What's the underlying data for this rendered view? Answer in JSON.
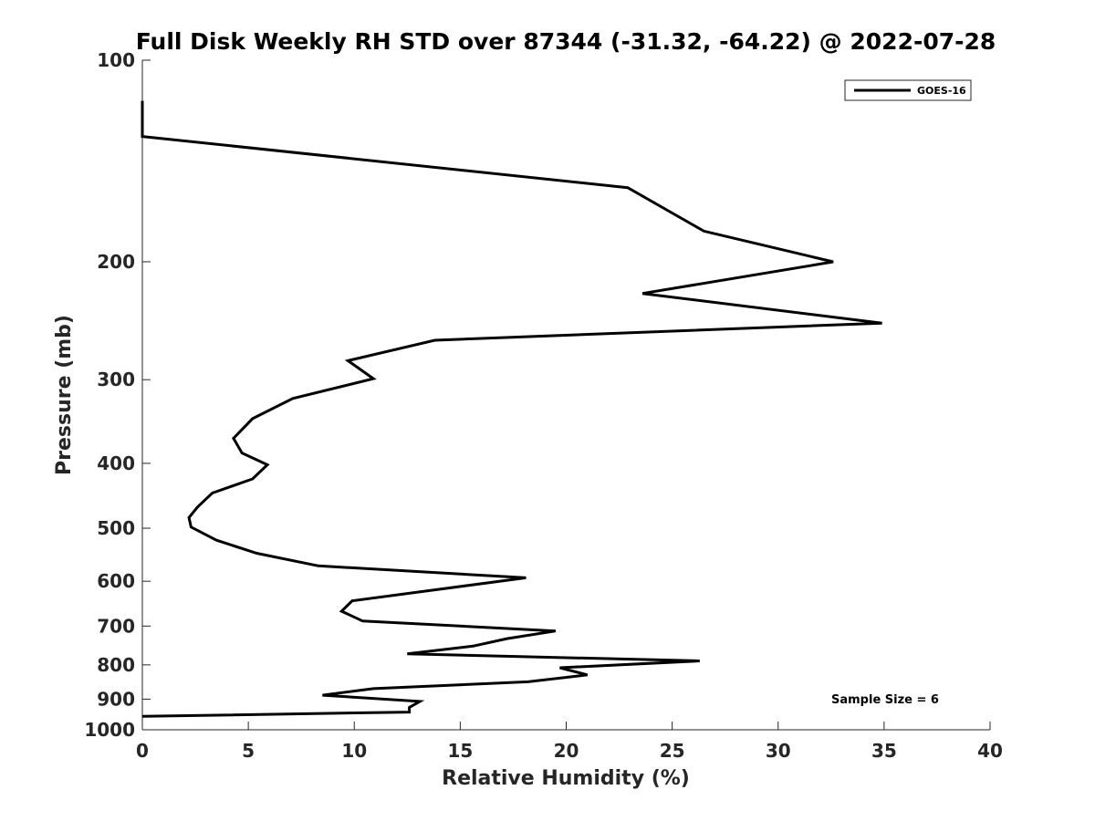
{
  "chart_data": {
    "type": "line",
    "title": "Full Disk Weekly RH STD over 87344 (-31.32, -64.22) @ 2022-07-28",
    "xlabel": "Relative Humidity (%)",
    "ylabel": "Pressure (mb)",
    "xlim": [
      0,
      40
    ],
    "ylim": [
      100,
      1000
    ],
    "yscale": "log",
    "y_reversed": true,
    "xticks": [
      0,
      5,
      10,
      15,
      20,
      25,
      30,
      35,
      40
    ],
    "yticks": [
      100,
      200,
      300,
      400,
      500,
      600,
      700,
      800,
      900,
      1000
    ],
    "grid": false,
    "legend_position": "top-right",
    "series": [
      {
        "name": "GOES-16",
        "color": "#000000",
        "points": [
          [
            0.0,
            115
          ],
          [
            0.0,
            130
          ],
          [
            22.9,
            155
          ],
          [
            26.5,
            180
          ],
          [
            32.6,
            200
          ],
          [
            23.6,
            223
          ],
          [
            34.9,
            247
          ],
          [
            13.8,
            262
          ],
          [
            9.7,
            281
          ],
          [
            10.9,
            299
          ],
          [
            7.1,
            320
          ],
          [
            5.2,
            343
          ],
          [
            4.3,
            367
          ],
          [
            4.7,
            386
          ],
          [
            5.9,
            402
          ],
          [
            5.2,
            422
          ],
          [
            3.3,
            443
          ],
          [
            2.6,
            465
          ],
          [
            2.2,
            482
          ],
          [
            2.3,
            498
          ],
          [
            3.5,
            521
          ],
          [
            5.4,
            545
          ],
          [
            8.3,
            569
          ],
          [
            18.1,
            593
          ],
          [
            13.8,
            618
          ],
          [
            9.9,
            642
          ],
          [
            9.4,
            665
          ],
          [
            10.4,
            688
          ],
          [
            19.5,
            712
          ],
          [
            17.2,
            731
          ],
          [
            15.6,
            750
          ],
          [
            12.5,
            770
          ],
          [
            26.3,
            789
          ],
          [
            19.7,
            808
          ],
          [
            21.0,
            828
          ],
          [
            18.2,
            848
          ],
          [
            10.9,
            868
          ],
          [
            8.5,
            888
          ],
          [
            13.1,
            907
          ],
          [
            12.6,
            926
          ],
          [
            12.6,
            941
          ],
          [
            0.0,
            955
          ]
        ]
      }
    ],
    "annotation": "Sample Size = 6"
  }
}
